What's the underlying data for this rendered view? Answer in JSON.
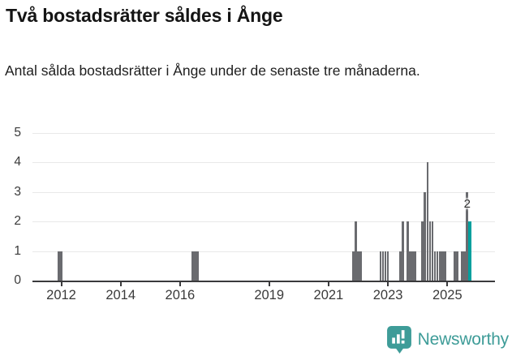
{
  "header": {
    "title": "Två bostadsrätter såldes i Ånge",
    "subtitle": "Antal sålda bostadsrätter i Ånge under de senaste tre månaderna."
  },
  "chart_data": {
    "type": "bar",
    "title": "Två bostadsrätter såldes i Ånge",
    "xlabel": "",
    "ylabel": "",
    "ylim": [
      0,
      5
    ],
    "grid": "horizontal",
    "y_axis": {
      "ticks": [
        0,
        1,
        2,
        3,
        4,
        5
      ]
    },
    "x_axis": {
      "tick_years": [
        2012,
        2014,
        2016,
        2019,
        2021,
        2023,
        2025
      ]
    },
    "points": [
      [
        "2011-12",
        1
      ],
      [
        "2012-01",
        1
      ],
      [
        "2016-06",
        1
      ],
      [
        "2016-07",
        1
      ],
      [
        "2016-08",
        1
      ],
      [
        "2021-11",
        1
      ],
      [
        "2021-12",
        2
      ],
      [
        "2022-01",
        1
      ],
      [
        "2022-02",
        1
      ],
      [
        "2022-10",
        1
      ],
      [
        "2022-11",
        1
      ],
      [
        "2022-12",
        1
      ],
      [
        "2023-01",
        1
      ],
      [
        "2023-06",
        1
      ],
      [
        "2023-07",
        2
      ],
      [
        "2023-09",
        2
      ],
      [
        "2023-10",
        1
      ],
      [
        "2023-11",
        1
      ],
      [
        "2023-12",
        1
      ],
      [
        "2024-03",
        2
      ],
      [
        "2024-04",
        3
      ],
      [
        "2024-05",
        4
      ],
      [
        "2024-06",
        2
      ],
      [
        "2024-07",
        2
      ],
      [
        "2024-08",
        1
      ],
      [
        "2024-09",
        1
      ],
      [
        "2024-10",
        1
      ],
      [
        "2024-11",
        1
      ],
      [
        "2024-12",
        1
      ],
      [
        "2025-04",
        1
      ],
      [
        "2025-05",
        1
      ],
      [
        "2025-07",
        1
      ],
      [
        "2025-08",
        1
      ],
      [
        "2025-09",
        3
      ]
    ],
    "highlight": {
      "month": "2025-10",
      "value": 2,
      "label": "2"
    },
    "colors": {
      "bar": "#6a6b6f",
      "highlight": "#00a09e",
      "grid": "#e9e9e9",
      "axis": "#3a3a3c",
      "tick_text": "#3a3a3a"
    }
  },
  "footer": {
    "brand": "Newsworthy",
    "brand_color": "#3e9c98"
  }
}
